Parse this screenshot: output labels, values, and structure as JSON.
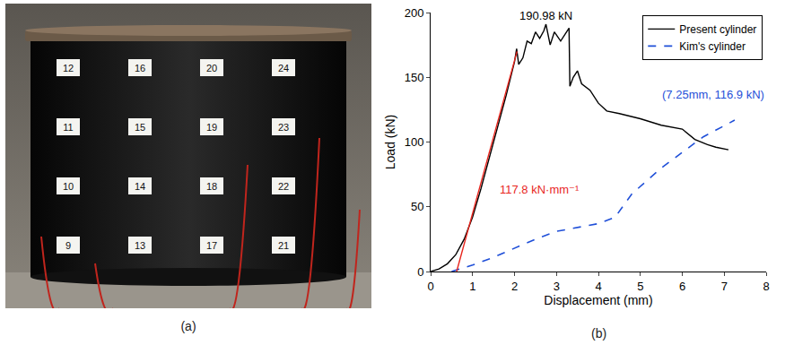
{
  "chart_data": {
    "type": "line",
    "panel_label": "(b)",
    "x_label": "Displacement (mm)",
    "y_label": "Load (kN)",
    "xlim": [
      0,
      8
    ],
    "ylim": [
      0,
      200
    ],
    "xticks": [
      0,
      1,
      2,
      3,
      4,
      5,
      6,
      7,
      8
    ],
    "yticks": [
      0,
      50,
      100,
      150,
      200
    ],
    "grid": false,
    "legend": "top-right",
    "series": [
      {
        "name": "Present cylinder",
        "color": "#000000",
        "line_style": "solid",
        "x": [
          0,
          0.2,
          0.4,
          0.6,
          0.8,
          1.0,
          1.2,
          1.4,
          1.6,
          1.8,
          2.0,
          2.05,
          2.1,
          2.2,
          2.3,
          2.4,
          2.5,
          2.6,
          2.7,
          2.75,
          2.85,
          2.95,
          3.1,
          3.3,
          3.32,
          3.4,
          3.5,
          3.6,
          3.8,
          4.0,
          4.2,
          4.5,
          5.0,
          5.5,
          6.0,
          6.3,
          6.6,
          6.8,
          7.1
        ],
        "values": [
          0,
          2,
          6,
          13,
          25,
          42,
          64,
          88,
          112,
          136,
          162,
          172,
          160,
          165,
          178,
          176,
          185,
          180,
          186,
          190.98,
          175,
          185,
          178,
          188,
          143,
          150,
          155,
          145,
          140,
          130,
          124,
          122,
          118,
          113,
          110,
          102,
          98,
          96,
          94
        ]
      },
      {
        "name": "Kim's cylinder",
        "color": "#1f4fd8",
        "line_style": "dash",
        "x": [
          0.5,
          1.0,
          1.5,
          2.0,
          2.5,
          3.0,
          3.5,
          4.0,
          4.4,
          4.8,
          5.5,
          6.0,
          6.5,
          7.25
        ],
        "values": [
          0,
          5,
          11,
          18,
          25,
          31,
          34,
          37,
          42,
          60,
          80,
          92,
          104,
          116.9
        ]
      },
      {
        "color": "#e8261e",
        "line_style": "solid",
        "x": [
          0.62,
          2.06
        ],
        "values": [
          0,
          170
        ]
      }
    ],
    "annotations": [
      {
        "text": "190.98 kN",
        "x": 2.75,
        "y": 191,
        "color": "#000000"
      },
      {
        "text": "117.8 kN·mm⁻¹",
        "x": 2.6,
        "y": 57,
        "color": "#e8261e"
      },
      {
        "text": "(7.25mm, 116.9 kN)",
        "x": 8,
        "y": 130,
        "color": "#1f4fd8"
      }
    ]
  },
  "photo": {
    "panel_label": "(a)",
    "tags": [
      [
        "12",
        "16",
        "20",
        "24"
      ],
      [
        "11",
        "15",
        "19",
        "23"
      ],
      [
        "10",
        "14",
        "18",
        "22"
      ],
      [
        "9",
        "13",
        "17",
        "21"
      ]
    ]
  }
}
